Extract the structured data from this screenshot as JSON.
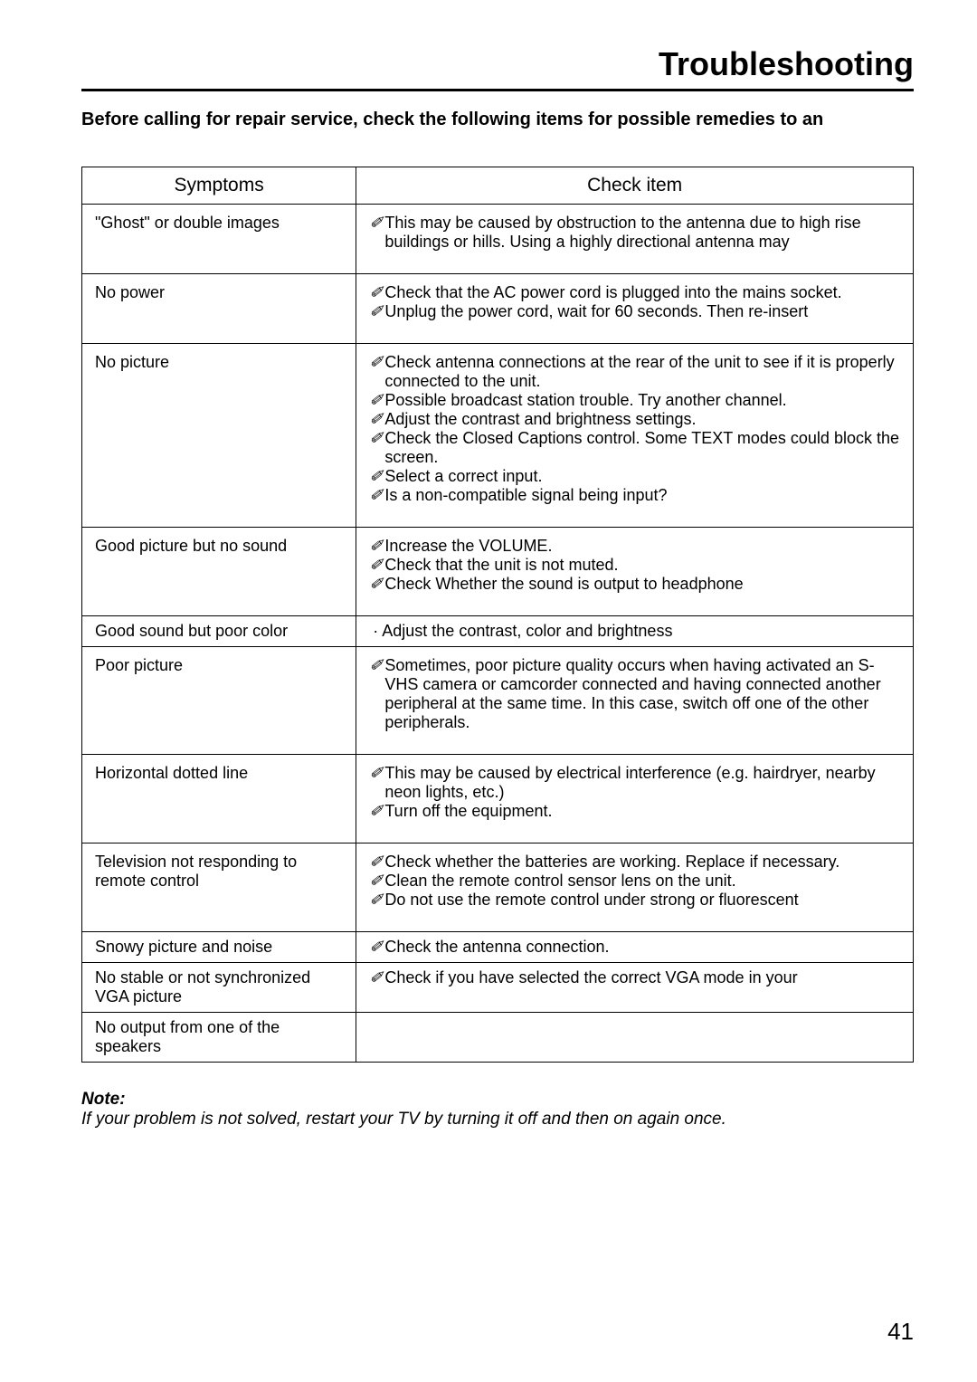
{
  "page": {
    "title": "Troubleshooting",
    "intro": "Before calling for repair service, check the following items for possible remedies to an",
    "page_number": "41"
  },
  "table": {
    "headers": {
      "symptoms": "Symptoms",
      "check": "Check item"
    },
    "rows": {
      "r1": {
        "symptom": "\"Ghost\" or double images",
        "bullets": {
          "b1": "This may be caused by obstruction to the antenna due to high rise buildings or hills. Using a highly directional antenna may"
        }
      },
      "r2": {
        "symptom": "No power",
        "bullets": {
          "b1": "Check that the   AC power cord is plugged into the mains socket.",
          "b2": "Unplug the power cord, wait for 60 seconds. Then re-insert"
        }
      },
      "r3": {
        "symptom": "No picture",
        "bullets": {
          "b1": "Check antenna connections at the rear of the unit to see if it is properly connected to the unit.",
          "b2": "Possible broadcast station trouble. Try another channel.",
          "b3": "Adjust the contrast and brightness settings.",
          "b4": "Check the Closed Captions control. Some TEXT modes could block the screen.",
          "b5": "Select a correct input.",
          "b6": "Is a non-compatible signal being input?"
        }
      },
      "r4": {
        "symptom": "Good picture but no sound",
        "bullets": {
          "b1": "Increase the VOLUME.",
          "b2": "Check that the unit is not muted.",
          "b3": "Check Whether the sound is output to headphone"
        }
      },
      "r5": {
        "symptom": "Good sound but poor color",
        "dot": "·  Adjust the contrast, color and brightness"
      },
      "r6": {
        "symptom": "Poor picture",
        "bullets": {
          "b1": "Sometimes, poor picture quality occurs when having activated an S-VHS camera or camcorder connected and having connected another peripheral at the same time. In this case, switch off one of the other peripherals."
        }
      },
      "r7": {
        "symptom": "Horizontal dotted line",
        "bullets": {
          "b1": "This may be caused by electrical interference (e.g. hairdryer, nearby neon lights, etc.)",
          "b2": "Turn off the equipment."
        }
      },
      "r8": {
        "symptom": "Television not responding to remote control",
        "bullets": {
          "b1": "Check whether the batteries are working. Replace if necessary.",
          "b2": "Clean the remote control sensor lens on the unit.",
          "b3": "Do not use the remote control under strong or fluorescent"
        }
      },
      "r9": {
        "symptom": "Snowy picture and noise",
        "bullets": {
          "b1": "Check the antenna connection."
        }
      },
      "r10": {
        "symptom": "No stable or not synchronized VGA picture",
        "bullets": {
          "b1": "Check if you have selected the correct VGA mode in your"
        }
      },
      "r11": {
        "symptom": "No output from one of the speakers"
      }
    }
  },
  "note": {
    "label": "Note:",
    "text": "If your problem is not solved, restart your TV by turning it off and then on again once."
  },
  "bullet_glyph": "✐"
}
